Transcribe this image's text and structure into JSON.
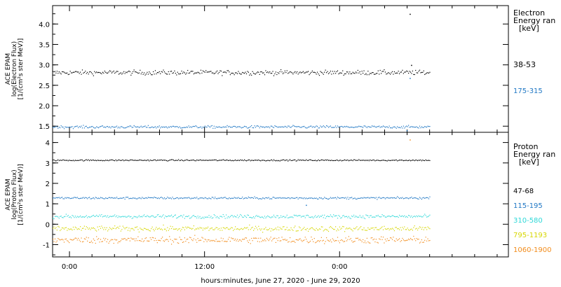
{
  "chart_data": [
    {
      "type": "scatter",
      "ylabel": [
        "ACE EPAM",
        "log(Electron Flux)",
        "[1/(cm²s ster MeV)]"
      ],
      "ylim": [
        1.35,
        4.45
      ],
      "yticks": [
        1.5,
        2.0,
        2.5,
        3.0,
        3.5,
        4.0
      ],
      "ytick_labels": [
        "1.5",
        "2.0",
        "2.5",
        "3.0",
        "3.5",
        "4.0"
      ],
      "legend_title": [
        "Electron",
        "Energy ran",
        "[keV]"
      ],
      "series": [
        {
          "name": "38-53",
          "color": "#000000",
          "level": 2.82,
          "noise": 0.045
        },
        {
          "name": "175-315",
          "color": "#1f77c4",
          "level": 1.49,
          "noise": 0.025
        }
      ],
      "spikes": [
        {
          "series": 0,
          "x": 60.45,
          "y": 4.25
        },
        {
          "series": 0,
          "x": 60.7,
          "y": 3.0
        },
        {
          "series": 1,
          "x": 60.45,
          "y": 2.68
        },
        {
          "series": 1,
          "x": 59.9,
          "y": 1.4
        }
      ]
    },
    {
      "type": "scatter",
      "ylabel": [
        "ACE EPAM",
        "log(Proton Flux)",
        "[1/(cm²s ster MeV)]"
      ],
      "ylim": [
        -1.6,
        4.5
      ],
      "yticks": [
        -1,
        0,
        1,
        2,
        3,
        4
      ],
      "ytick_labels": [
        "-1",
        "0",
        "1",
        "2",
        "3",
        "4"
      ],
      "legend_title": [
        "Proton",
        "Energy ran",
        "[keV]"
      ],
      "series": [
        {
          "name": "47-68",
          "color": "#000000",
          "level": 3.15,
          "noise": 0.025
        },
        {
          "name": "115-195",
          "color": "#1f77c4",
          "level": 1.3,
          "noise": 0.04
        },
        {
          "name": "310-580",
          "color": "#2ed8d8",
          "level": 0.4,
          "noise": 0.07
        },
        {
          "name": "795-1193",
          "color": "#d6d600",
          "level": -0.2,
          "noise": 0.1
        },
        {
          "name": "1060-1900",
          "color": "#f28c1c",
          "level": -0.75,
          "noise": 0.13
        }
      ],
      "spikes": [
        {
          "series": 4,
          "x": 60.45,
          "y": 4.15
        },
        {
          "series": 1,
          "x": 42.0,
          "y": 0.95
        }
      ]
    }
  ],
  "x_axis": {
    "xlim": [
      -3,
      78
    ],
    "data_range": [
      -3,
      64
    ],
    "ticks": [
      0,
      24,
      48
    ],
    "tick_labels": [
      "0:00",
      "12:00",
      "0:00"
    ],
    "minor_step": 4,
    "xlabel": "hours:minutes, June 27, 2020 - June 29, 2020"
  }
}
